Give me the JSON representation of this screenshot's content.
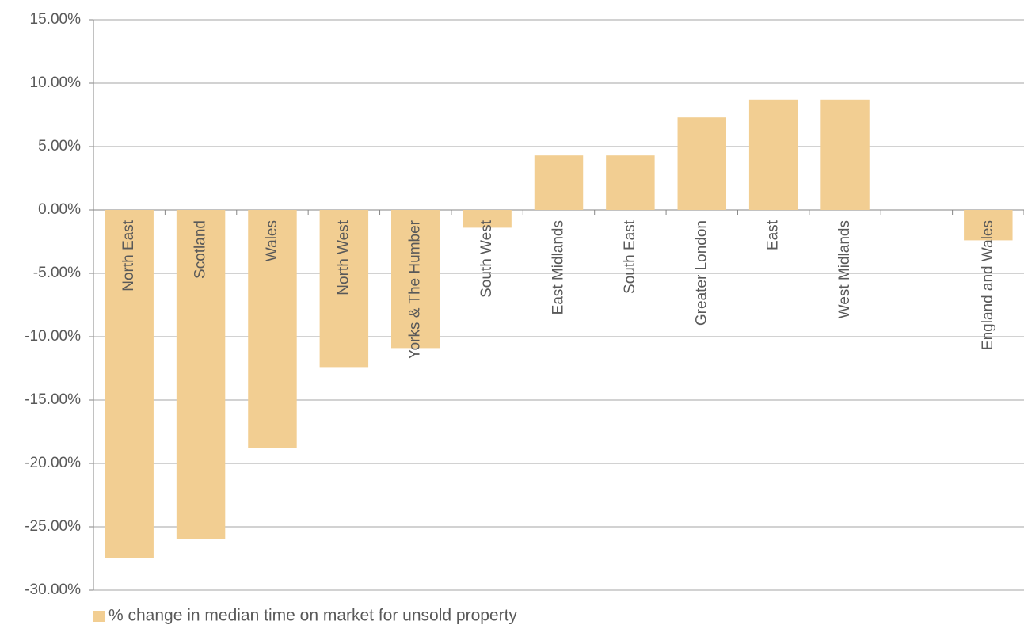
{
  "chart_data": {
    "type": "bar",
    "categories": [
      "North East",
      "Scotland",
      "Wales",
      "North West",
      "Yorks & The Humber",
      "South West",
      "East Midlands",
      "South East",
      "Greater London",
      "East",
      "West Midlands",
      null,
      "England and Wales"
    ],
    "series": [
      {
        "name": "% change in median time on market for unsold property",
        "color": "#f2ce92",
        "values": [
          -27.5,
          -26.0,
          -18.8,
          -12.4,
          -10.9,
          -1.4,
          4.3,
          4.3,
          7.3,
          8.7,
          8.7,
          null,
          -2.4
        ]
      }
    ],
    "ylim": [
      -30,
      15
    ],
    "yticks": [
      {
        "value": -30,
        "label": "-30.00%"
      },
      {
        "value": -25,
        "label": "-25.00%"
      },
      {
        "value": -20,
        "label": "-20.00%"
      },
      {
        "value": -15,
        "label": "-15.00%"
      },
      {
        "value": -10,
        "label": "-10.00%"
      },
      {
        "value": -5,
        "label": "-5.00%"
      },
      {
        "value": 0,
        "label": "0.00%"
      },
      {
        "value": 5,
        "label": "5.00%"
      },
      {
        "value": 10,
        "label": "10.00%"
      },
      {
        "value": 15,
        "label": "15.00%"
      }
    ],
    "grid": true,
    "legend": "bottom-left"
  }
}
